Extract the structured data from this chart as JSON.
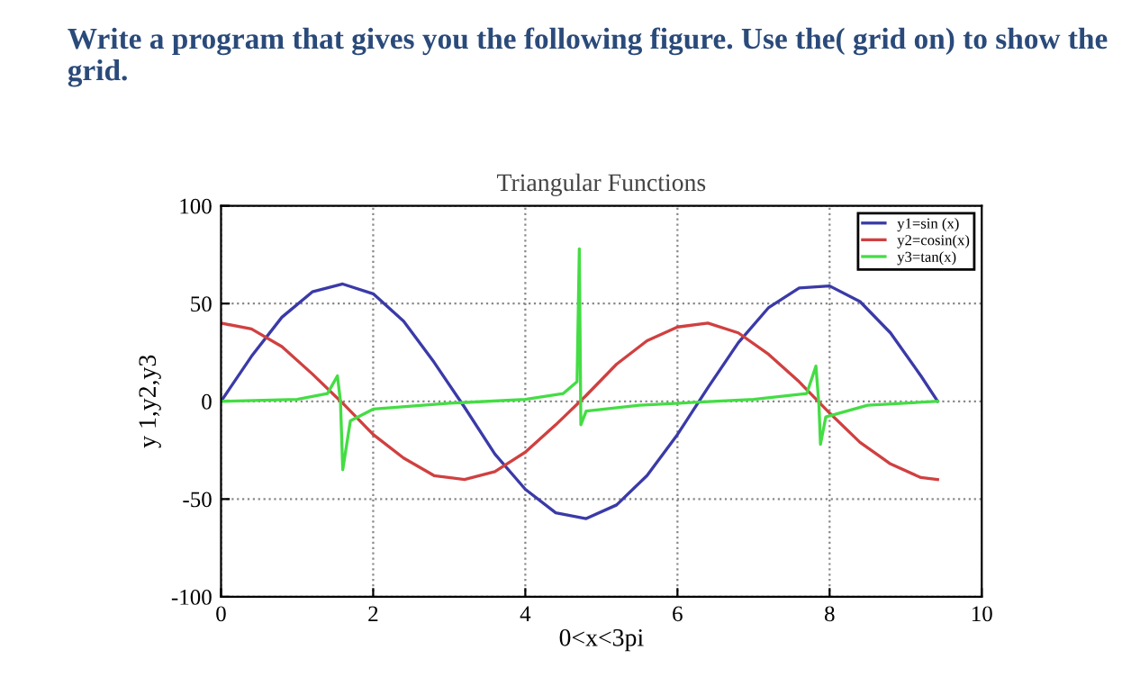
{
  "chart_data": {
    "type": "line",
    "title": "Triangular Functions",
    "xlabel": "0<x<3pi",
    "ylabel": "y 1,y2,y3",
    "annotations": [
      "Write a program that gives you the following figure. Use the( grid on) to show the grid."
    ],
    "xlim": [
      0,
      10
    ],
    "ylim": [
      -100,
      100
    ],
    "xticks": [
      0,
      2,
      4,
      6,
      8,
      10
    ],
    "yticks": [
      -100,
      -50,
      0,
      50,
      100
    ],
    "grid": true,
    "legend": "top right",
    "marker": "none",
    "line_style": "solid",
    "series": [
      {
        "name": "y1=sin (x)",
        "color": "#3a3aa8",
        "x": [
          0,
          0.4,
          0.8,
          1.2,
          1.6,
          2.0,
          2.4,
          2.8,
          3.2,
          3.6,
          4.0,
          4.4,
          4.8,
          5.2,
          5.6,
          6.0,
          6.4,
          6.8,
          7.2,
          7.6,
          8.0,
          8.4,
          8.8,
          9.2,
          9.42
        ],
        "values": [
          0,
          23,
          43,
          56,
          60,
          55,
          41,
          20,
          -3,
          -27,
          -45,
          -57,
          -60,
          -53,
          -38,
          -17,
          7,
          30,
          48,
          58,
          59,
          51,
          35,
          13,
          0
        ]
      },
      {
        "name": "y2=cosin(x)",
        "color": "#d04040",
        "x": [
          0,
          0.4,
          0.8,
          1.2,
          1.6,
          2.0,
          2.4,
          2.8,
          3.2,
          3.6,
          4.0,
          4.4,
          4.8,
          5.2,
          5.6,
          6.0,
          6.4,
          6.8,
          7.2,
          7.6,
          8.0,
          8.4,
          8.8,
          9.2,
          9.42
        ],
        "values": [
          40,
          37,
          28,
          14,
          -1,
          -17,
          -29,
          -38,
          -40,
          -36,
          -26,
          -12,
          3,
          19,
          31,
          38,
          40,
          35,
          24,
          10,
          -6,
          -21,
          -32,
          -39,
          -40
        ]
      },
      {
        "name": "y3=tan(x)",
        "color": "#44dd44",
        "x": [
          0,
          1.0,
          1.4,
          1.53,
          1.57,
          1.6,
          1.7,
          2.0,
          3.0,
          4.0,
          4.5,
          4.68,
          4.71,
          4.73,
          4.8,
          5.5,
          7.0,
          7.7,
          7.82,
          7.86,
          7.88,
          7.95,
          8.5,
          9.42
        ],
        "values": [
          0,
          1,
          4,
          13,
          0,
          -35,
          -10,
          -4,
          -1,
          1,
          4,
          10,
          78,
          -12,
          -5,
          -2,
          1,
          4,
          18,
          -2,
          -22,
          -8,
          -2,
          0
        ]
      }
    ]
  }
}
